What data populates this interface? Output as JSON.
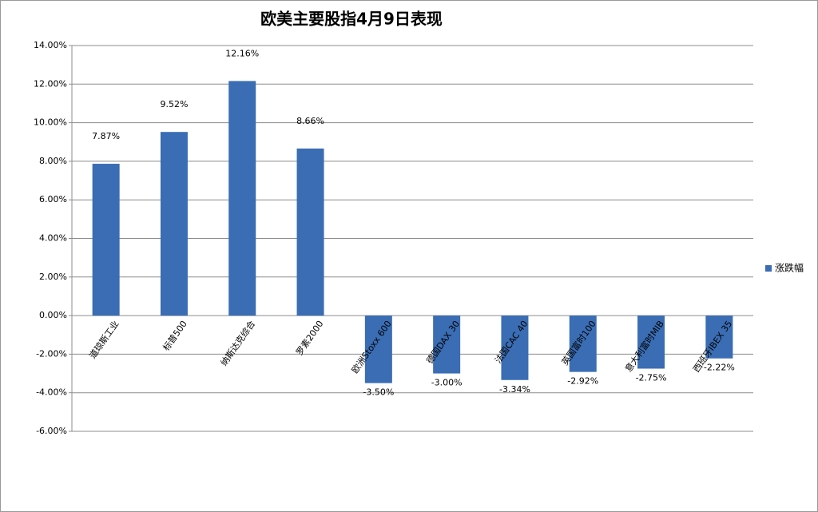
{
  "chart_data": {
    "type": "bar",
    "title": "欧美主要股指4月9日表现",
    "categories": [
      "道琼斯工业",
      "标普500",
      "纳斯达克综合",
      "罗素2000",
      "欧洲Stoxx 600",
      "德国DAX 30",
      "法国CAC 40",
      "英国富时100",
      "意大利富时MIB",
      "西班牙IBEX 35"
    ],
    "series": [
      {
        "name": "涨跌幅",
        "color": "#3a6db4",
        "values": [
          7.87,
          9.52,
          12.16,
          8.66,
          -3.5,
          -3.0,
          -3.34,
          -2.92,
          -2.75,
          -2.22
        ],
        "value_labels": [
          "7.87%",
          "9.52%",
          "12.16%",
          "8.66%",
          "-3.50%",
          "-3.00%",
          "-3.34%",
          "-2.92%",
          "-2.75%",
          "-2.22%"
        ]
      }
    ],
    "ylim": [
      -6,
      14
    ],
    "yticks": [
      {
        "value": -6,
        "label": "-6.00%"
      },
      {
        "value": -4,
        "label": "-4.00%"
      },
      {
        "value": -2,
        "label": "-2.00%"
      },
      {
        "value": 0,
        "label": "0.00%"
      },
      {
        "value": 2,
        "label": "2.00%"
      },
      {
        "value": 4,
        "label": "4.00%"
      },
      {
        "value": 6,
        "label": "6.00%"
      },
      {
        "value": 8,
        "label": "8.00%"
      },
      {
        "value": 10,
        "label": "10.00%"
      },
      {
        "value": 12,
        "label": "12.00%"
      },
      {
        "value": 14,
        "label": "14.00%"
      }
    ],
    "grid": true,
    "legend": "right"
  }
}
